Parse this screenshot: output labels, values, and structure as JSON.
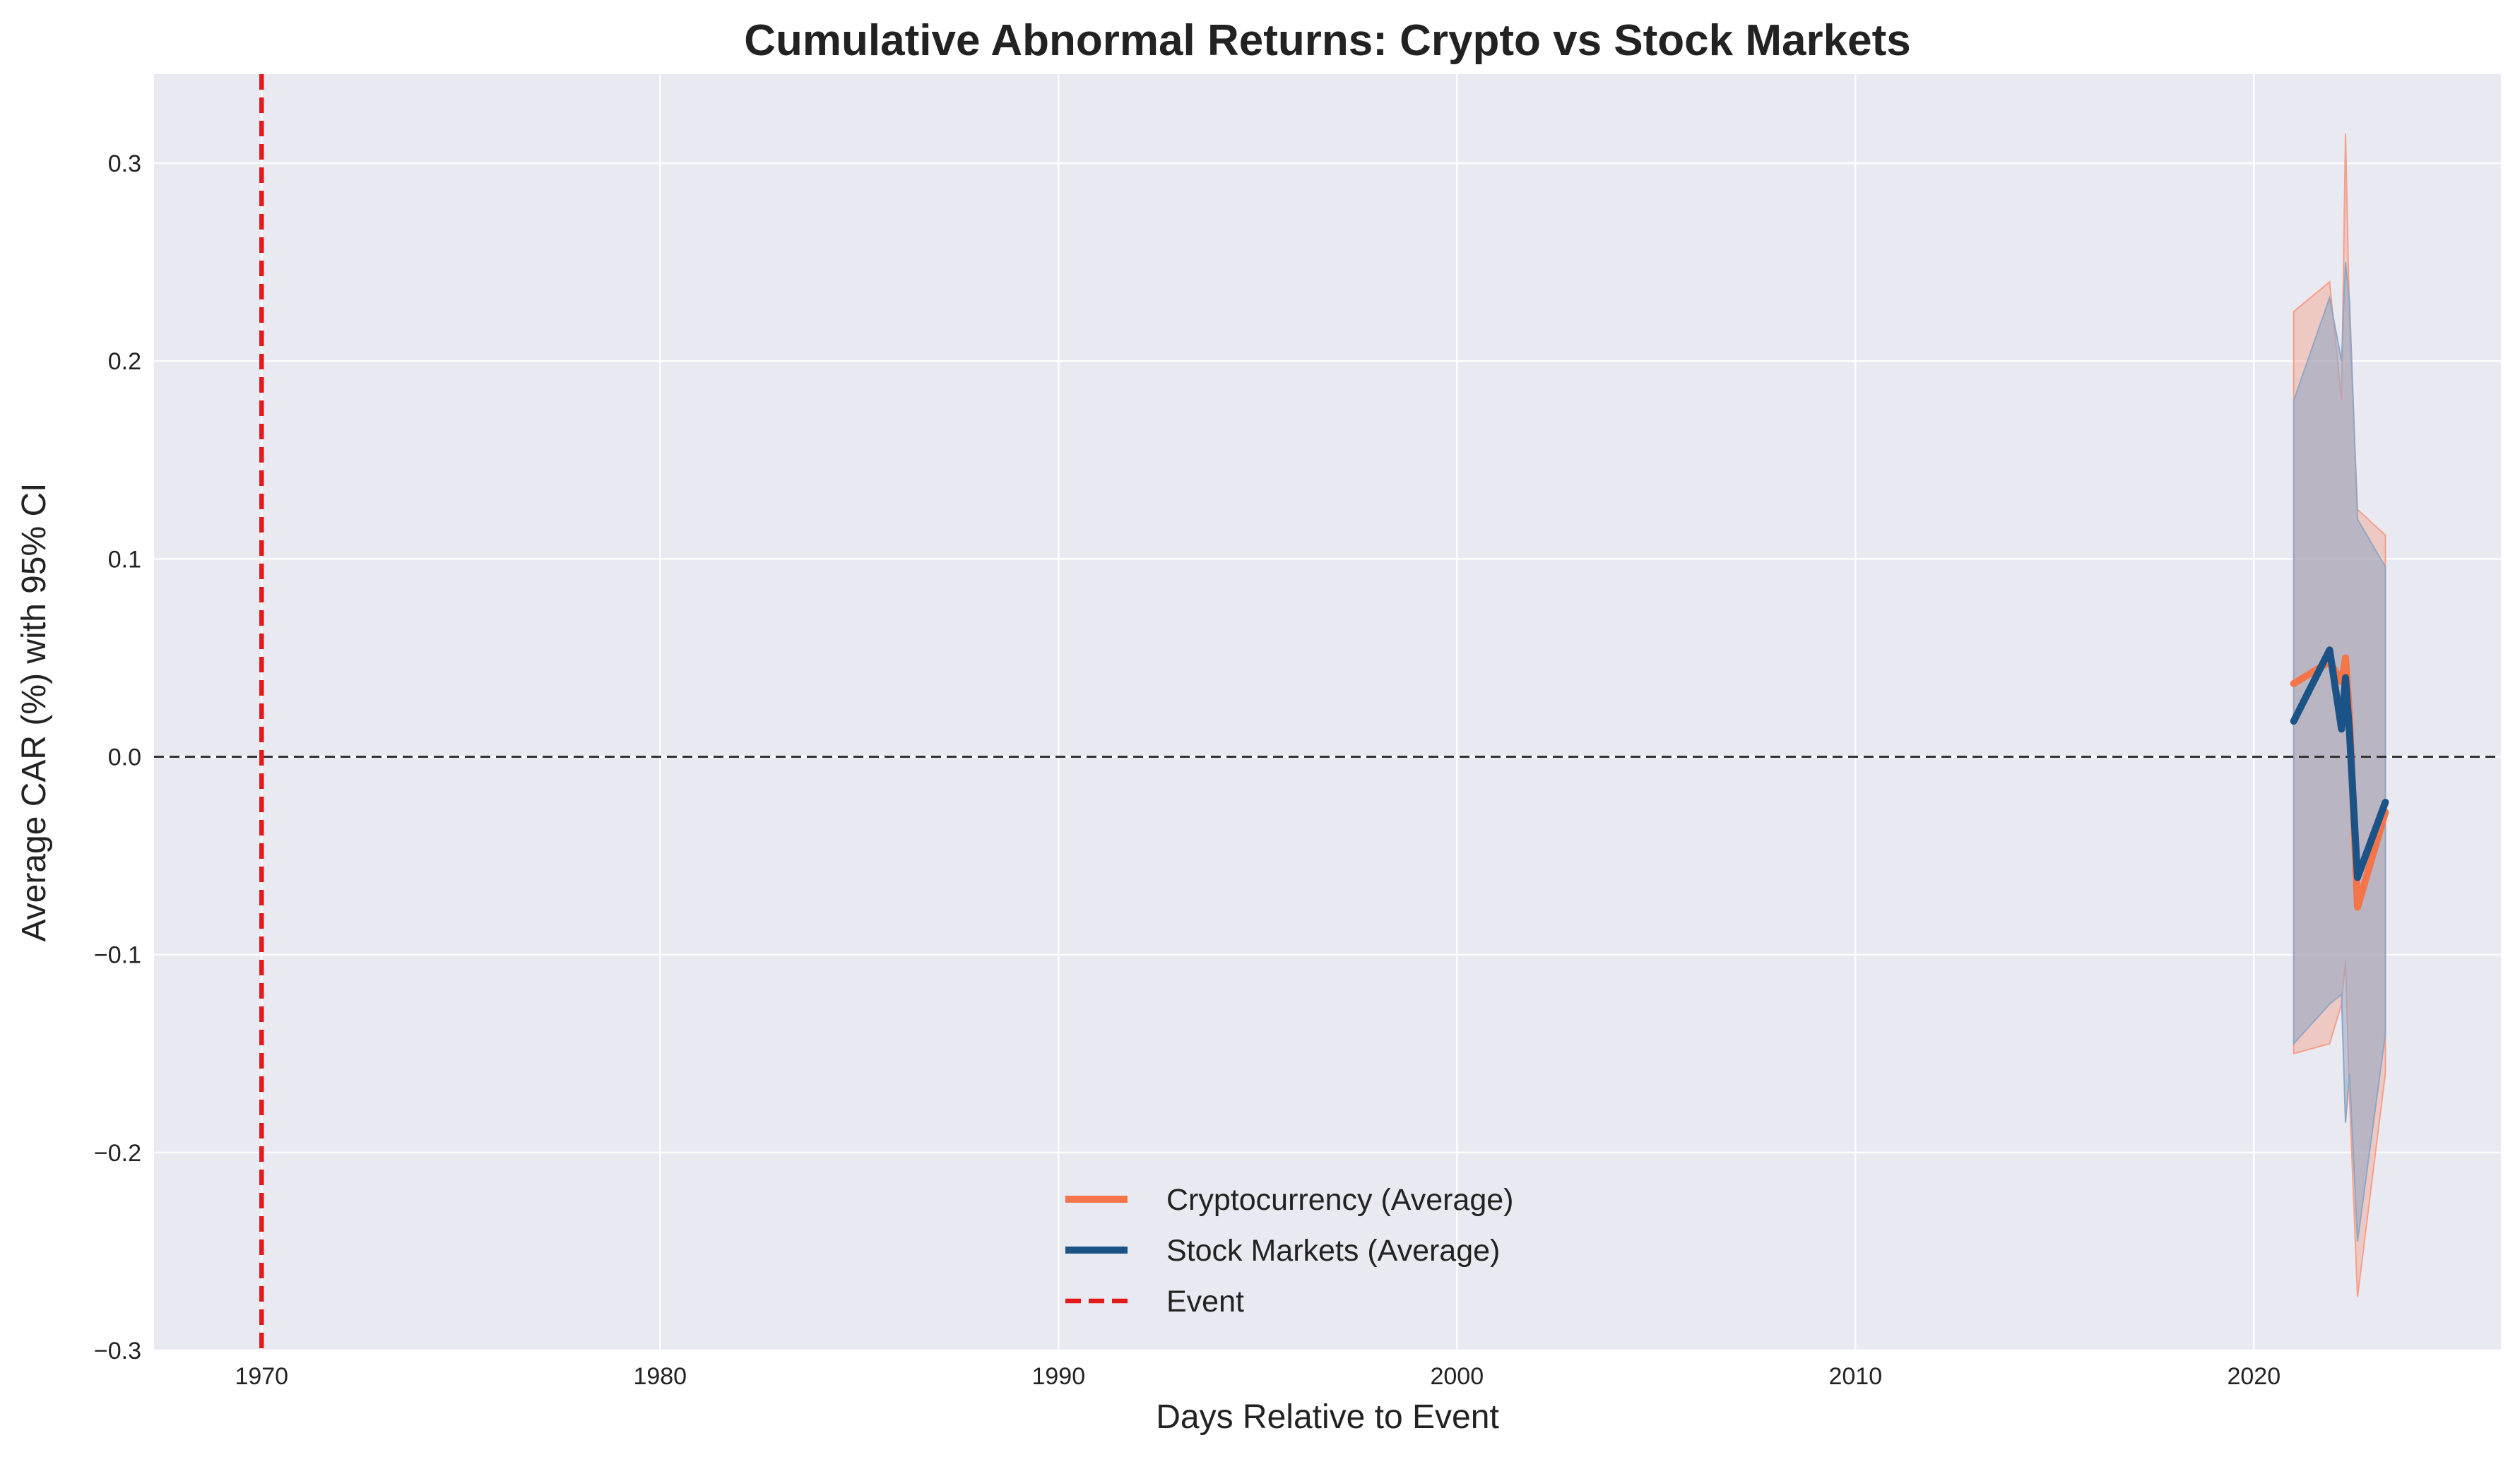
{
  "chart_data": {
    "type": "line",
    "title": "Cumulative Abnormal Returns: Crypto vs Stock Markets",
    "xlabel": "Days Relative to Event",
    "ylabel": "Average CAR (%) with 95% CI",
    "xlim": [
      1967.3,
      2026.2
    ],
    "ylim": [
      -0.3,
      0.345
    ],
    "xticks": [
      1970,
      1980,
      1990,
      2000,
      2010,
      2020
    ],
    "yticks": [
      -0.3,
      -0.2,
      -0.1,
      0.0,
      0.1,
      0.2,
      0.3
    ],
    "ytick_labels": [
      "−0.3",
      "−0.2",
      "−0.1",
      "0.0",
      "0.1",
      "0.2",
      "0.3"
    ],
    "grid": true,
    "legend_position": "lower center",
    "background": "#e9e9f1",
    "zero_line": {
      "y": 0.0,
      "style": "dashed",
      "color": "#333333"
    },
    "event_line": {
      "x": 1970.0,
      "style": "dashed",
      "color": "#e31a1c",
      "label": "Event"
    },
    "series": [
      {
        "name": "Cryptocurrency (Average)",
        "color": "#f4754a",
        "band_color": "#f4a08a",
        "x": [
          2021.0,
          2021.9,
          2022.2,
          2022.3,
          2022.4,
          2022.6,
          2023.3
        ],
        "y": [
          0.037,
          0.048,
          0.038,
          0.05,
          0.02,
          -0.076,
          -0.028
        ],
        "lower": [
          -0.15,
          -0.145,
          -0.125,
          -0.103,
          -0.172,
          -0.273,
          -0.16
        ],
        "upper": [
          0.225,
          0.24,
          0.18,
          0.315,
          0.22,
          0.125,
          0.112
        ]
      },
      {
        "name": "Stock Markets (Average)",
        "color": "#1b5386",
        "band_color": "#8fa6c4",
        "x": [
          2021.0,
          2021.9,
          2022.2,
          2022.3,
          2022.4,
          2022.6,
          2023.3
        ],
        "y": [
          0.018,
          0.054,
          0.014,
          0.04,
          0.012,
          -0.061,
          -0.023
        ],
        "lower": [
          -0.145,
          -0.125,
          -0.12,
          -0.185,
          -0.16,
          -0.245,
          -0.14
        ],
        "upper": [
          0.18,
          0.232,
          0.2,
          0.25,
          0.23,
          0.12,
          0.096
        ]
      }
    ]
  }
}
